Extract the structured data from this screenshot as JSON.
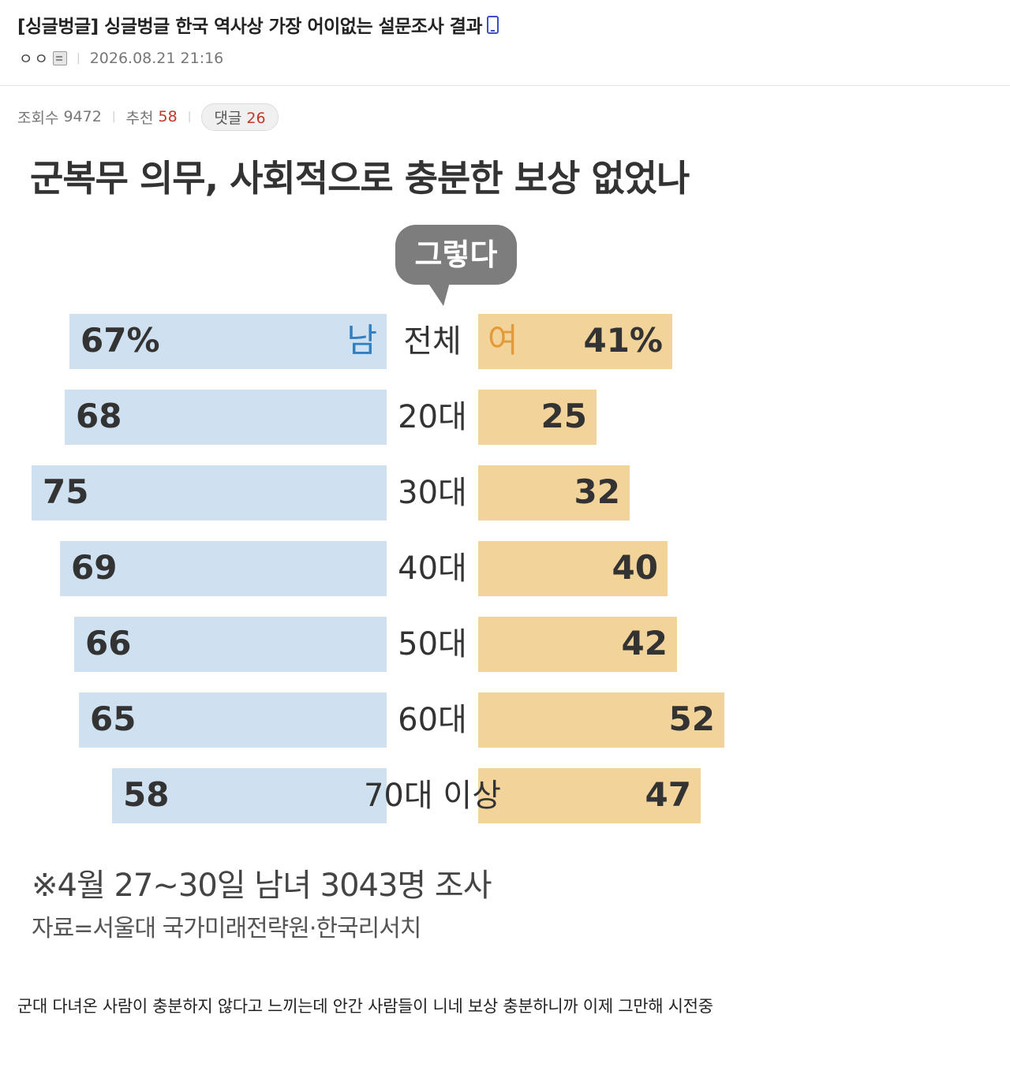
{
  "post": {
    "title": "[싱글벙글] 싱글벙글 한국 역사상 가장 어이없는 설문조사 결과",
    "author": "ㅇㅇ",
    "datetime": "2026.08.21 21:16",
    "views_label": "조회수",
    "views": "9472",
    "likes_label": "추천",
    "likes": "58",
    "comments_label": "댓글",
    "comments": "26",
    "body": "군대 다녀온 사람이 충분하지 않다고 느끼는데 안간 사람들이 니네 보상 충분하니까 이제 그만해 시전중",
    "icons": {
      "device": "mobile-phone-icon",
      "level": "member-level-icon"
    }
  },
  "chart_data": {
    "type": "bar",
    "title": "군복무 의무, 사회적으로 충분한 보상 없었나",
    "callout": "그렇다",
    "categories": [
      "전체",
      "20대",
      "30대",
      "40대",
      "50대",
      "60대",
      "70대 이상"
    ],
    "series": [
      {
        "name": "남",
        "values": [
          67,
          68,
          75,
          69,
          66,
          65,
          58
        ],
        "labels": [
          "67%",
          "68",
          "75",
          "69",
          "66",
          "65",
          "58"
        ],
        "color": "#cfe0f0",
        "label_color": "#2f7fc1"
      },
      {
        "name": "여",
        "values": [
          41,
          25,
          32,
          40,
          42,
          52,
          47
        ],
        "labels": [
          "41%",
          "25",
          "32",
          "40",
          "42",
          "52",
          "47"
        ],
        "color": "#f2d49a",
        "label_color": "#e39a3a"
      }
    ],
    "layout": "butterfly",
    "footnote": "※4월 27~30일 남녀 3043명 조사",
    "source": "자료=서울대 국가미래전략원·한국리서치"
  }
}
